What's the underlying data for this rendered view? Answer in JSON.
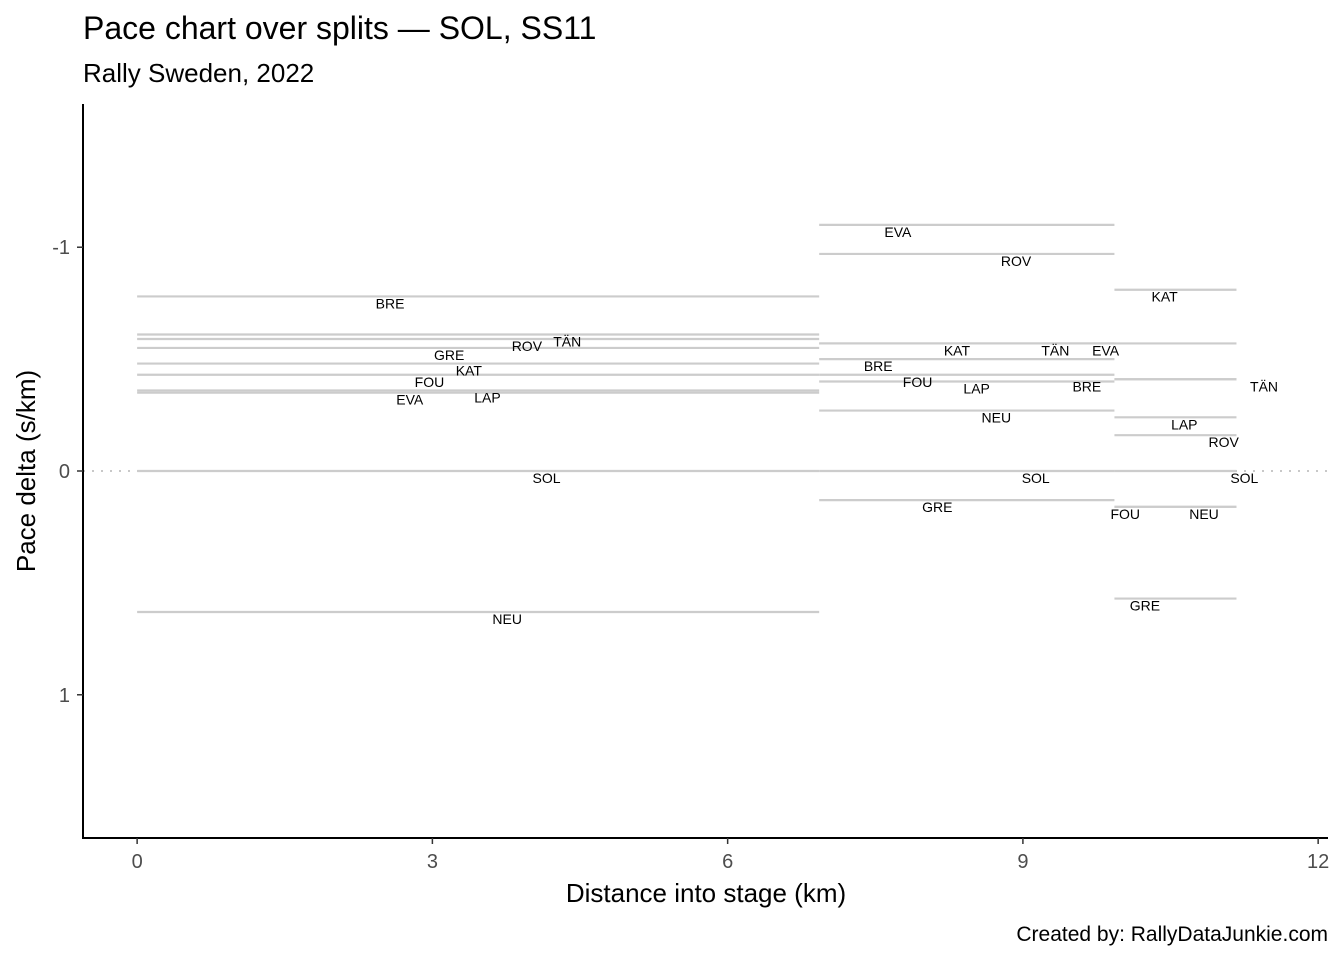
{
  "chart_data": {
    "type": "segment",
    "title": "Pace chart over splits — SOL, SS11",
    "subtitle": "Rally Sweden, 2022",
    "xlabel": "Distance into stage (km)",
    "ylabel": "Pace delta (s/km)",
    "caption": "Created by: RallyDataJunkie.com",
    "xlim": [
      -0.55,
      12.1
    ],
    "ylim": [
      1.64,
      -1.64
    ],
    "y_reversed": true,
    "x_ticks": [
      0,
      3,
      6,
      9,
      12
    ],
    "x_tick_labels": [
      "0",
      "3",
      "6",
      "9",
      "12"
    ],
    "y_ticks": [
      -1,
      0,
      1
    ],
    "y_tick_labels": [
      "-1",
      "0",
      "1"
    ],
    "reference_line": {
      "y": 0,
      "style": "dotted"
    },
    "segments": [
      {
        "code": "BRE",
        "x_start": 0,
        "x_end": 6.93,
        "pace": -0.78,
        "label_x": 2.57
      },
      {
        "code": "TÄN",
        "x_start": 0,
        "x_end": 6.93,
        "pace": -0.61,
        "label_x": 4.37
      },
      {
        "code": "ROV",
        "x_start": 0,
        "x_end": 6.93,
        "pace": -0.59,
        "label_x": 3.96
      },
      {
        "code": "GRE",
        "x_start": 0,
        "x_end": 6.93,
        "pace": -0.55,
        "label_x": 3.17
      },
      {
        "code": "KAT",
        "x_start": 0,
        "x_end": 6.93,
        "pace": -0.48,
        "label_x": 3.37
      },
      {
        "code": "FOU",
        "x_start": 0,
        "x_end": 6.93,
        "pace": -0.43,
        "label_x": 2.97
      },
      {
        "code": "LAP",
        "x_start": 0,
        "x_end": 6.93,
        "pace": -0.36,
        "label_x": 3.56
      },
      {
        "code": "EVA",
        "x_start": 0,
        "x_end": 6.93,
        "pace": -0.35,
        "label_x": 2.77
      },
      {
        "code": "SOL",
        "x_start": 0,
        "x_end": 6.93,
        "pace": 0.0,
        "label_x": 4.16
      },
      {
        "code": "NEU",
        "x_start": 0,
        "x_end": 6.93,
        "pace": 0.63,
        "label_x": 3.76
      },
      {
        "code": "EVA",
        "x_start": 6.93,
        "x_end": 9.93,
        "pace": -1.1,
        "label_x": 7.73
      },
      {
        "code": "ROV",
        "x_start": 6.93,
        "x_end": 9.93,
        "pace": -0.97,
        "label_x": 8.93
      },
      {
        "code": "KAT",
        "x_start": 6.93,
        "x_end": 9.93,
        "pace": -0.57,
        "label_x": 8.33
      },
      {
        "code": "TÄN",
        "x_start": 6.93,
        "x_end": 9.93,
        "pace": -0.57,
        "label_x": 9.33
      },
      {
        "code": "BRE",
        "x_start": 6.93,
        "x_end": 9.93,
        "pace": -0.5,
        "label_x": 7.53
      },
      {
        "code": "FOU",
        "x_start": 6.93,
        "x_end": 9.93,
        "pace": -0.43,
        "label_x": 7.93
      },
      {
        "code": "LAP",
        "x_start": 6.93,
        "x_end": 9.93,
        "pace": -0.4,
        "label_x": 8.53
      },
      {
        "code": "NEU",
        "x_start": 6.93,
        "x_end": 9.93,
        "pace": -0.27,
        "label_x": 8.73
      },
      {
        "code": "SOL",
        "x_start": 6.93,
        "x_end": 9.93,
        "pace": 0.0,
        "label_x": 9.13
      },
      {
        "code": "GRE",
        "x_start": 6.93,
        "x_end": 9.93,
        "pace": 0.13,
        "label_x": 8.13
      },
      {
        "code": "KAT",
        "x_start": 9.93,
        "x_end": 11.17,
        "pace": -0.81,
        "label_x": 10.44
      },
      {
        "code": "EVA",
        "x_start": 9.93,
        "x_end": 11.17,
        "pace": -0.57,
        "label_x": 9.84
      },
      {
        "code": "TÄN",
        "x_start": 9.93,
        "x_end": 11.17,
        "pace": -0.41,
        "label_x": 11.45
      },
      {
        "code": "BRE",
        "x_start": 9.93,
        "x_end": 11.17,
        "pace": -0.41,
        "label_x": 9.65
      },
      {
        "code": "LAP",
        "x_start": 9.93,
        "x_end": 11.17,
        "pace": -0.24,
        "label_x": 10.64
      },
      {
        "code": "ROV",
        "x_start": 9.93,
        "x_end": 11.17,
        "pace": -0.16,
        "label_x": 11.04
      },
      {
        "code": "SOL",
        "x_start": 9.93,
        "x_end": 11.17,
        "pace": 0.0,
        "label_x": 11.25
      },
      {
        "code": "FOU",
        "x_start": 9.93,
        "x_end": 11.17,
        "pace": 0.16,
        "label_x": 10.04
      },
      {
        "code": "NEU",
        "x_start": 9.93,
        "x_end": 11.17,
        "pace": 0.16,
        "label_x": 10.84
      },
      {
        "code": "GRE",
        "x_start": 9.93,
        "x_end": 11.17,
        "pace": 0.57,
        "label_x": 10.24
      }
    ],
    "colors": {
      "segment": "#cccccc",
      "axis": "#000000",
      "tick_label": "#4d4d4d",
      "reference": "#c8c8c8"
    }
  }
}
